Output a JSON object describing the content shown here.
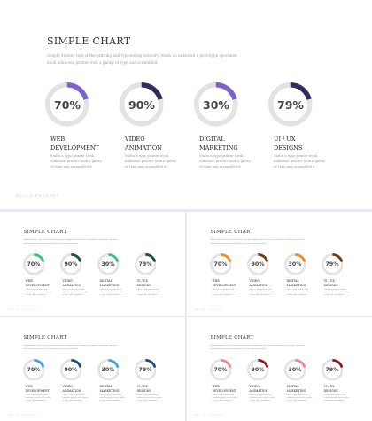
{
  "title": "SIMPLE CHART",
  "description": "Simply dummy text of the printing and typesetting industry. when an unknown a prototype specimen book unknown printer took a galley of type and scrambled.",
  "footer": "MALLA PRESENT",
  "items": [
    {
      "label": "WEB DEVELOPMENT",
      "percent": "70%",
      "value": 70,
      "text": "Malta a typo printer book unknown printer took a galley of type and scrambled it."
    },
    {
      "label": "VIDEO ANIMATION",
      "percent": "90%",
      "value": 90,
      "text": "Malta a typo printer book unknown printer took a galley of type and scrambled it."
    },
    {
      "label": "DIGITAL MARKETING",
      "percent": "30%",
      "value": 30,
      "text": "Malta a typo printer book unknown printer took a galley of type and scrambled it."
    },
    {
      "label": "UI / UX DESIGNS",
      "percent": "79%",
      "value": 79,
      "text": "Malta a typo printer book unknown printer took a galley of type and scrambled it."
    }
  ],
  "slides": [
    {
      "variant": "main",
      "accents": [
        "#7e62c9",
        "#332a60",
        "#7e62c9",
        "#332a60"
      ]
    },
    {
      "variant": "green",
      "accents": [
        "#3cc37a",
        "#1c4f34",
        "#3cc37a",
        "#1c4f34"
      ]
    },
    {
      "variant": "orange",
      "accents": [
        "#ee8a2a",
        "#6e3c14",
        "#ee8a2a",
        "#6e3c14"
      ]
    },
    {
      "variant": "blue",
      "accents": [
        "#3aa8da",
        "#1b4e71",
        "#3aa8da",
        "#1b4e71"
      ]
    },
    {
      "variant": "red",
      "accents": [
        "#ef8888",
        "#8a1c1c",
        "#ef8888",
        "#8a1c1c"
      ]
    }
  ]
}
